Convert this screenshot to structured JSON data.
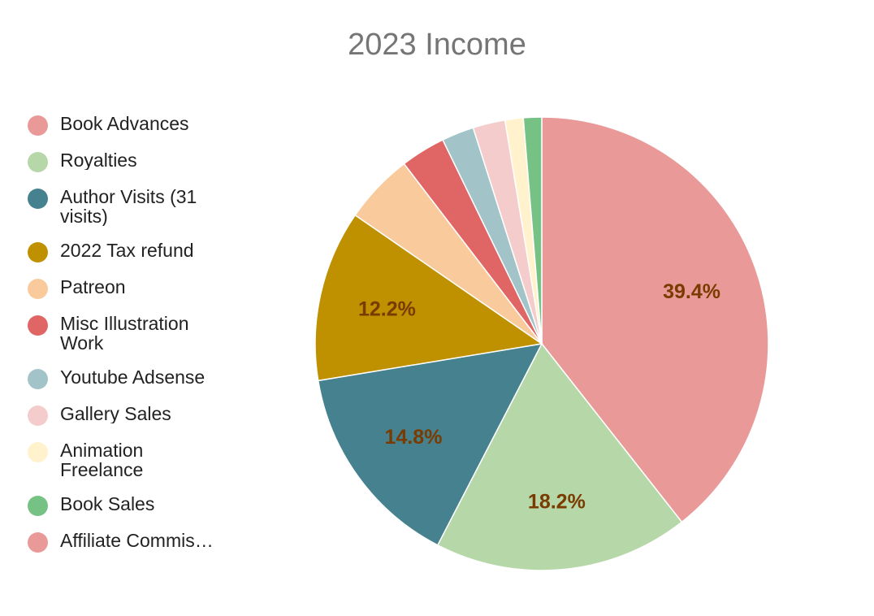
{
  "chart_data": {
    "type": "pie",
    "title": "2023 Income",
    "legend_position": "left",
    "slices": [
      {
        "label": "Book Advances",
        "percent": 39.4,
        "color": "#ea9999",
        "data_label": "39.4%"
      },
      {
        "label": "Royalties",
        "percent": 18.2,
        "color": "#b6d7a8",
        "data_label": "18.2%"
      },
      {
        "label": "Author Visits (31 visits)",
        "percent": 14.8,
        "color": "#45818e",
        "data_label": "14.8%"
      },
      {
        "label": "2022 Tax refund",
        "percent": 12.2,
        "color": "#bf9000",
        "data_label": "12.2%"
      },
      {
        "label": "Patreon",
        "percent": 5.0,
        "color": "#f9cb9c",
        "data_label": ""
      },
      {
        "label": "Misc Illustration Work",
        "percent": 3.2,
        "color": "#e06666",
        "data_label": ""
      },
      {
        "label": "Youtube Adsense",
        "percent": 2.3,
        "color": "#a2c4c9",
        "data_label": ""
      },
      {
        "label": "Gallery Sales",
        "percent": 2.3,
        "color": "#f4cccc",
        "data_label": ""
      },
      {
        "label": "Animation Freelance",
        "percent": 1.3,
        "color": "#fff2cc",
        "data_label": ""
      },
      {
        "label": "Book Sales",
        "percent": 1.3,
        "color": "#76c285",
        "data_label": ""
      },
      {
        "label": "Affiliate Commis…",
        "percent": 0.0,
        "color": "#ea9999",
        "data_label": ""
      }
    ]
  }
}
